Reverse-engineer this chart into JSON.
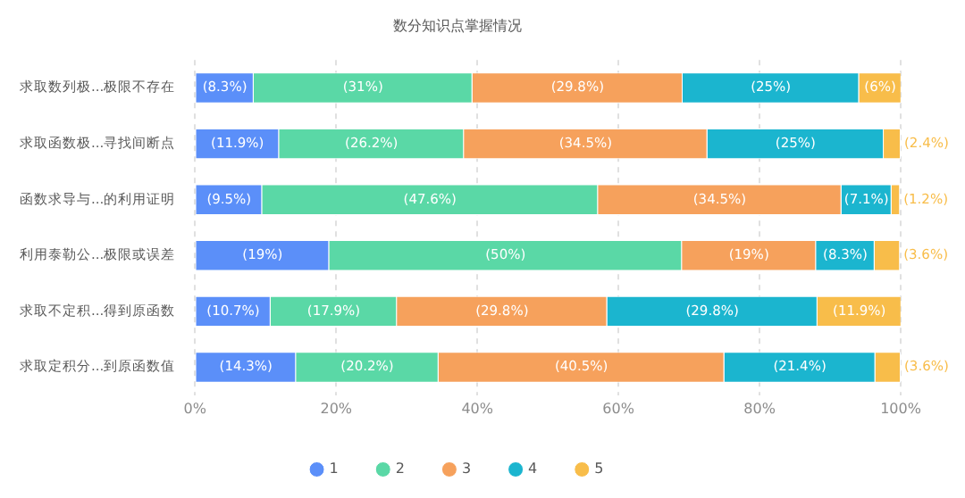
{
  "chart_data": {
    "type": "bar",
    "orientation": "horizontal",
    "stacked": true,
    "title": "数分知识点掌握情况",
    "categories": [
      "求取数列极...极限不存在",
      "求取函数极...寻找间断点",
      "函数求导与...的利用证明",
      "利用泰勒公...极限或误差",
      "求取不定积...得到原函数",
      "求取定积分...到原函数值"
    ],
    "series": [
      {
        "name": "1",
        "color": "#5b8ff9",
        "values": [
          8.3,
          11.9,
          9.5,
          19,
          10.7,
          14.3
        ],
        "value_labels": [
          "(8.3%)",
          "(11.9%)",
          "(9.5%)",
          "(19%)",
          "(10.7%)",
          "(14.3%)"
        ]
      },
      {
        "name": "2",
        "color": "#5ad8a6",
        "values": [
          31,
          26.2,
          47.6,
          50,
          17.9,
          20.2
        ],
        "value_labels": [
          "(31%)",
          "(26.2%)",
          "(47.6%)",
          "(50%)",
          "(17.9%)",
          "(20.2%)"
        ]
      },
      {
        "name": "3",
        "color": "#f6a15c",
        "values": [
          29.8,
          34.5,
          34.5,
          19,
          29.8,
          40.5
        ],
        "value_labels": [
          "(29.8%)",
          "(34.5%)",
          "(34.5%)",
          "(19%)",
          "(29.8%)",
          "(40.5%)"
        ]
      },
      {
        "name": "4",
        "color": "#1bb5cf",
        "values": [
          25,
          25,
          7.1,
          8.3,
          29.8,
          21.4
        ],
        "value_labels": [
          "(25%)",
          "(25%)",
          "(7.1%)",
          "(8.3%)",
          "(29.8%)",
          "(21.4%)"
        ]
      },
      {
        "name": "5",
        "color": "#f8bd4a",
        "values": [
          6,
          2.4,
          1.2,
          3.6,
          11.9,
          3.6
        ],
        "value_labels": [
          "(6%)",
          "(2.4%)",
          "(1.2%)",
          "(3.6%)",
          "(11.9%)",
          "(3.6%)"
        ]
      }
    ],
    "xlim": [
      0,
      100
    ],
    "xticks": [
      {
        "value": 0,
        "label": "0%"
      },
      {
        "value": 20,
        "label": "20%"
      },
      {
        "value": 40,
        "label": "40%"
      },
      {
        "value": 60,
        "label": "60%"
      },
      {
        "value": 80,
        "label": "80%"
      },
      {
        "value": 100,
        "label": "100%"
      }
    ],
    "grid": "x",
    "legend": "bottom",
    "marker": "circle"
  }
}
